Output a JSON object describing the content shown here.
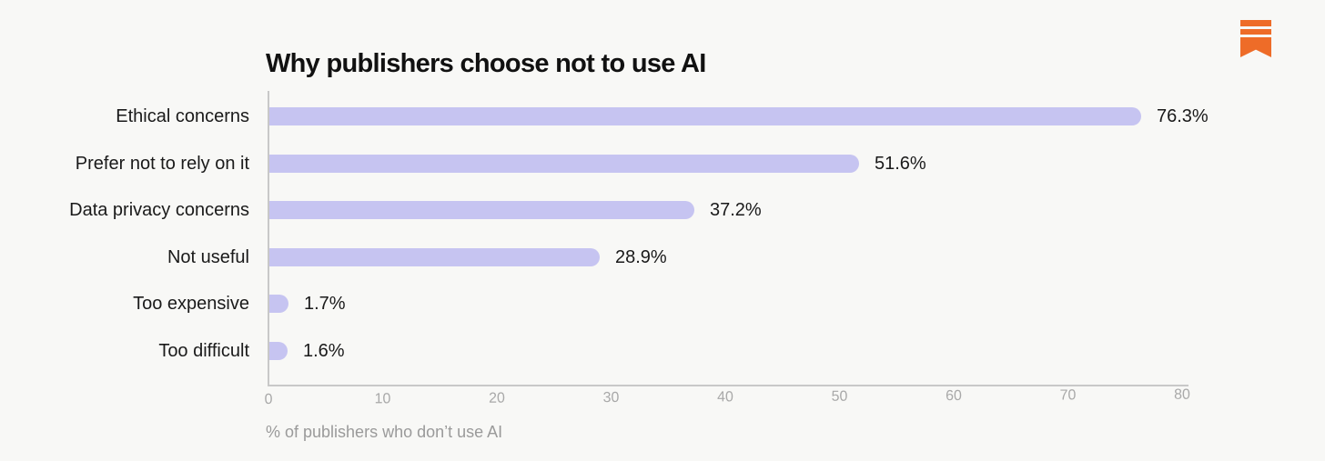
{
  "page": {
    "background": "#f8f8f6",
    "logo": {
      "icon": "substack-bookmark-logo",
      "color": "#ee6c28"
    }
  },
  "chart_data": {
    "type": "bar",
    "orientation": "horizontal",
    "title": "Why publishers choose not to use AI",
    "categories": [
      "Ethical concerns",
      "Prefer not to rely on it",
      "Data privacy concerns",
      "Not useful",
      "Too expensive",
      "Too difficult"
    ],
    "values": [
      76.3,
      51.6,
      37.2,
      28.9,
      1.7,
      1.6
    ],
    "value_labels": [
      "76.3%",
      "51.6%",
      "37.2%",
      "28.9%",
      "1.7%",
      "1.6%"
    ],
    "xlabel": "% of publishers who don’t use AI",
    "ylabel": "",
    "xlim": [
      0,
      80
    ],
    "xticks": [
      0,
      10,
      20,
      30,
      40,
      50,
      60,
      70,
      80
    ],
    "grid": false,
    "legend": false,
    "colors": {
      "bar": "#c6c4f1",
      "title": "#111111",
      "label": "#1a1a1a",
      "tick": "#a9a9a9",
      "axis_line": "#c8c8c8",
      "xlabel": "#9a9a9a"
    }
  }
}
